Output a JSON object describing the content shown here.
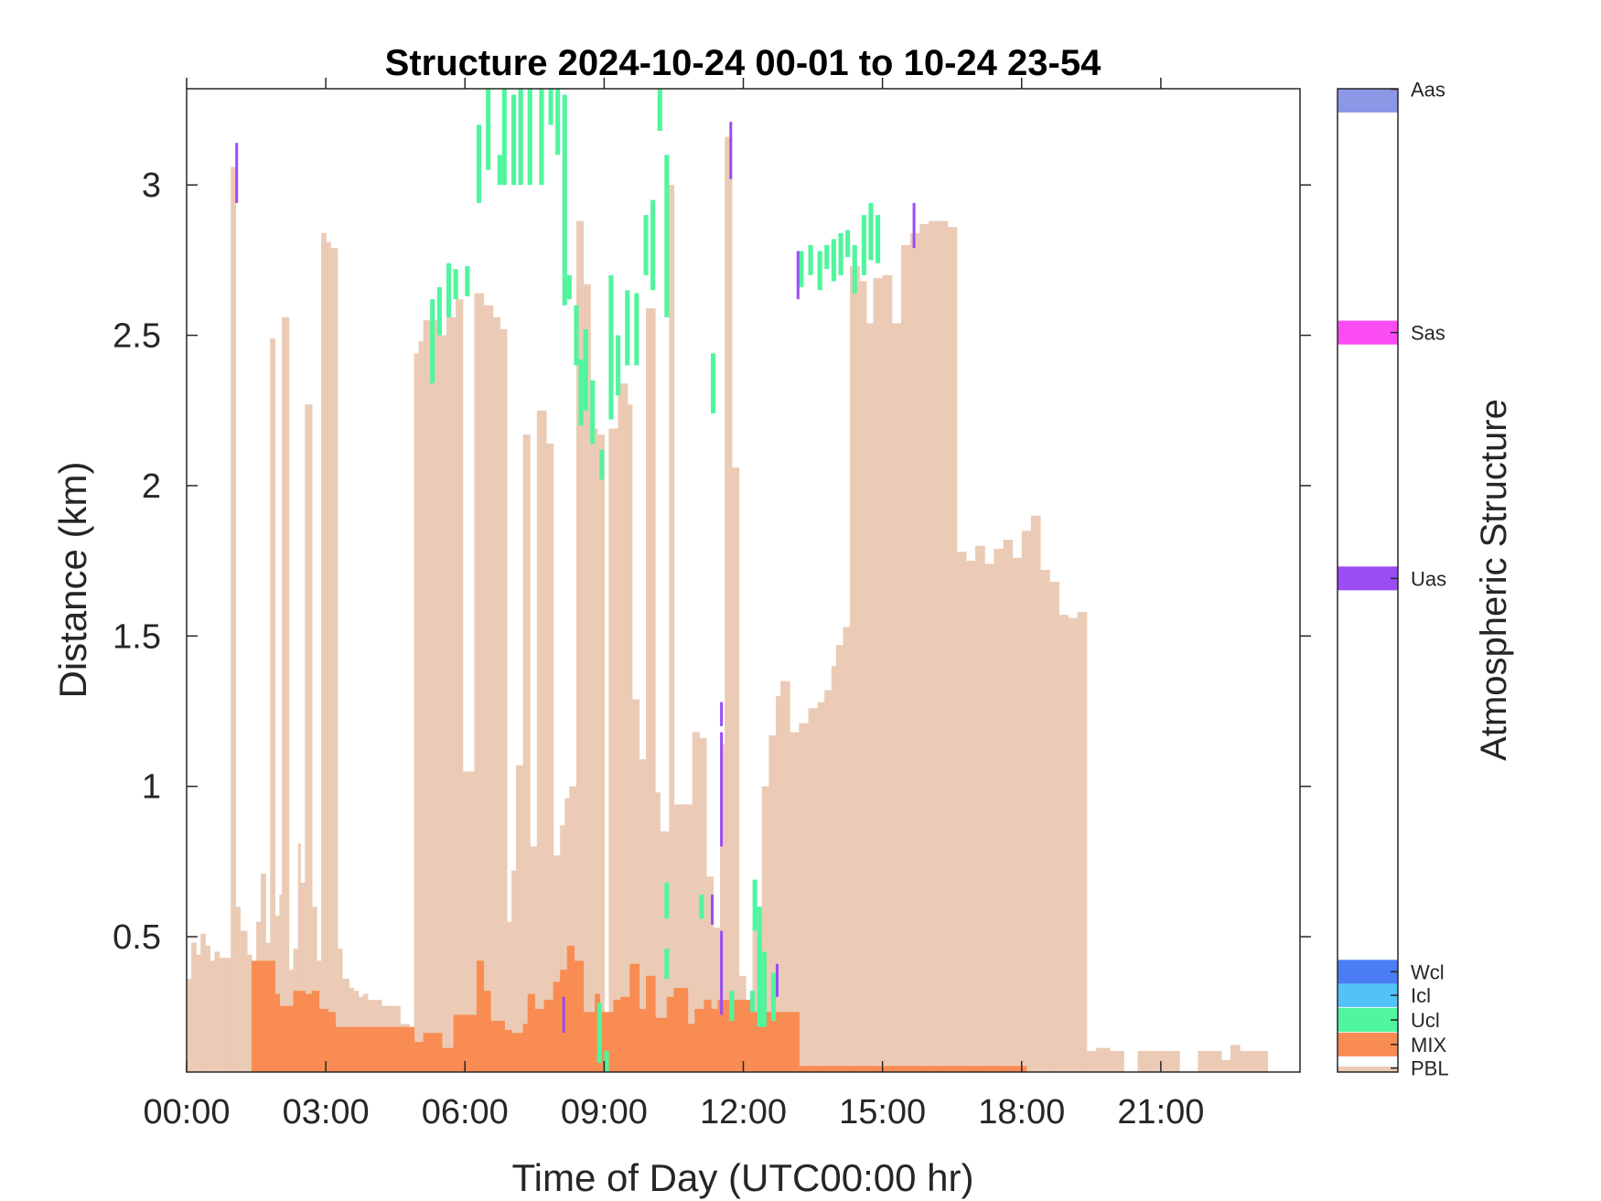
{
  "chart_data": {
    "type": "heatmap",
    "title": "Structure 2024-10-24 00-01 to 10-24 23-54",
    "xlabel": "Time of Day (UTC00:00 hr)",
    "ylabel": "Distance (km)",
    "colorbar_label": "Atmospheric Structure",
    "xlim": [
      0,
      24
    ],
    "ylim": [
      0.05,
      3.32
    ],
    "x_ticks": [
      0,
      3,
      6,
      9,
      12,
      15,
      18,
      21
    ],
    "x_tick_labels": [
      "00:00",
      "03:00",
      "06:00",
      "09:00",
      "12:00",
      "15:00",
      "18:00",
      "21:00"
    ],
    "y_ticks": [
      0.5,
      1,
      1.5,
      2,
      2.5,
      3
    ],
    "y_tick_labels": [
      "0.5",
      "1",
      "1.5",
      "2",
      "2.5",
      "3"
    ],
    "categories": [
      {
        "label": "PBL",
        "color": "#EBCBB5"
      },
      {
        "label": "MIX",
        "color": "#F88C52"
      },
      {
        "label": "Ucl",
        "color": "#50F59D"
      },
      {
        "label": "Icl",
        "color": "#52C3F8"
      },
      {
        "label": "Wcl",
        "color": "#4B7DF5"
      },
      {
        "label": "Uas",
        "color": "#9B4CF5"
      },
      {
        "label": "Sas",
        "color": "#FA4CF2"
      },
      {
        "label": "Aas",
        "color": "#8C98E6"
      }
    ],
    "series": [
      {
        "name": "PBL",
        "profile": [
          [
            0.0,
            0.36
          ],
          [
            0.1,
            0.48
          ],
          [
            0.2,
            0.44
          ],
          [
            0.3,
            0.51
          ],
          [
            0.4,
            0.47
          ],
          [
            0.5,
            0.42
          ],
          [
            0.6,
            0.45
          ],
          [
            0.7,
            0.43
          ],
          [
            0.8,
            0.43
          ],
          [
            0.95,
            3.06
          ],
          [
            1.05,
            0.6
          ],
          [
            1.15,
            0.52
          ],
          [
            1.3,
            0.44
          ],
          [
            1.4,
            0.41
          ],
          [
            1.5,
            0.55
          ],
          [
            1.6,
            0.71
          ],
          [
            1.7,
            0.48
          ],
          [
            1.8,
            2.49
          ],
          [
            1.9,
            0.57
          ],
          [
            2.0,
            0.64
          ],
          [
            2.05,
            2.56
          ],
          [
            2.2,
            0.39
          ],
          [
            2.3,
            0.46
          ],
          [
            2.4,
            0.81
          ],
          [
            2.45,
            0.68
          ],
          [
            2.55,
            2.27
          ],
          [
            2.7,
            0.6
          ],
          [
            2.8,
            0.42
          ],
          [
            2.9,
            2.84
          ],
          [
            3.0,
            2.81
          ],
          [
            3.1,
            2.79
          ],
          [
            3.25,
            0.46
          ],
          [
            3.35,
            0.36
          ],
          [
            3.5,
            0.33
          ],
          [
            3.6,
            0.32
          ],
          [
            3.7,
            0.3
          ],
          [
            3.8,
            0.31
          ],
          [
            3.9,
            0.29
          ],
          [
            4.0,
            0.29
          ],
          [
            4.2,
            0.27
          ],
          [
            4.4,
            0.27
          ],
          [
            4.6,
            0.21
          ],
          [
            4.8,
            0.16
          ],
          [
            4.9,
            2.44
          ],
          [
            5.0,
            2.48
          ],
          [
            5.1,
            2.55
          ],
          [
            5.2,
            2.55
          ],
          [
            5.4,
            2.5
          ],
          [
            5.6,
            2.56
          ],
          [
            5.8,
            2.62
          ],
          [
            5.95,
            1.05
          ],
          [
            6.2,
            2.64
          ],
          [
            6.4,
            2.6
          ],
          [
            6.6,
            2.56
          ],
          [
            6.75,
            2.52
          ],
          [
            6.9,
            0.55
          ],
          [
            7.0,
            0.72
          ],
          [
            7.1,
            1.07
          ],
          [
            7.25,
            2.17
          ],
          [
            7.4,
            0.8
          ],
          [
            7.55,
            2.25
          ],
          [
            7.75,
            2.14
          ],
          [
            7.9,
            0.77
          ],
          [
            8.05,
            0.87
          ],
          [
            8.15,
            0.96
          ],
          [
            8.25,
            1.0
          ],
          [
            8.4,
            2.88
          ],
          [
            8.55,
            2.67
          ],
          [
            8.7,
            2.19
          ],
          [
            8.85,
            2.17
          ],
          [
            9.0,
            0.15
          ],
          [
            9.1,
            2.19
          ],
          [
            9.3,
            2.34
          ],
          [
            9.5,
            2.27
          ],
          [
            9.6,
            1.29
          ],
          [
            9.75,
            1.09
          ],
          [
            9.9,
            2.59
          ],
          [
            10.1,
            0.98
          ],
          [
            10.2,
            0.85
          ],
          [
            10.4,
            3.0
          ],
          [
            10.5,
            0.94
          ],
          [
            10.7,
            0.94
          ],
          [
            10.9,
            1.18
          ],
          [
            11.05,
            1.16
          ],
          [
            11.2,
            0.7
          ],
          [
            11.35,
            0.53
          ],
          [
            11.5,
            1.14
          ],
          [
            11.6,
            3.16
          ],
          [
            11.75,
            2.06
          ],
          [
            11.9,
            0.37
          ],
          [
            12.05,
            0.2
          ],
          [
            12.2,
            0.52
          ],
          [
            12.3,
            0.49
          ],
          [
            12.4,
            1.0
          ],
          [
            12.55,
            1.17
          ],
          [
            12.7,
            1.3
          ],
          [
            12.8,
            1.35
          ],
          [
            13.0,
            1.18
          ],
          [
            13.2,
            1.21
          ],
          [
            13.4,
            1.26
          ],
          [
            13.6,
            1.28
          ],
          [
            13.75,
            1.32
          ],
          [
            13.9,
            1.4
          ],
          [
            14.0,
            1.47
          ],
          [
            14.15,
            1.53
          ],
          [
            14.3,
            2.73
          ],
          [
            14.5,
            2.68
          ],
          [
            14.65,
            2.54
          ],
          [
            14.8,
            2.69
          ],
          [
            15.0,
            2.7
          ],
          [
            15.2,
            2.54
          ],
          [
            15.4,
            2.8
          ],
          [
            15.6,
            2.84
          ],
          [
            15.8,
            2.87
          ],
          [
            16.0,
            2.88
          ],
          [
            16.2,
            2.88
          ],
          [
            16.4,
            2.86
          ],
          [
            16.6,
            1.78
          ],
          [
            16.8,
            1.75
          ],
          [
            17.0,
            1.8
          ],
          [
            17.2,
            1.74
          ],
          [
            17.4,
            1.79
          ],
          [
            17.6,
            1.82
          ],
          [
            17.8,
            1.76
          ],
          [
            18.0,
            1.85
          ],
          [
            18.2,
            1.9
          ],
          [
            18.4,
            1.72
          ],
          [
            18.6,
            1.68
          ],
          [
            18.8,
            1.57
          ],
          [
            19.0,
            1.56
          ],
          [
            19.2,
            1.58
          ],
          [
            19.4,
            0.12
          ],
          [
            19.6,
            0.13
          ],
          [
            19.9,
            0.12
          ],
          [
            20.2,
            0.0
          ],
          [
            20.5,
            0.12
          ],
          [
            20.8,
            0.12
          ],
          [
            21.1,
            0.12
          ],
          [
            21.4,
            0.0
          ],
          [
            21.8,
            0.12
          ],
          [
            22.0,
            0.12
          ],
          [
            22.3,
            0.09
          ],
          [
            22.5,
            0.14
          ],
          [
            22.7,
            0.12
          ],
          [
            23.0,
            0.12
          ],
          [
            23.3,
            0.05
          ],
          [
            23.6,
            0.0
          ]
        ]
      },
      {
        "name": "MIX",
        "profile": [
          [
            1.4,
            0.42
          ],
          [
            1.7,
            0.42
          ],
          [
            1.9,
            0.31
          ],
          [
            2.0,
            0.27
          ],
          [
            2.3,
            0.32
          ],
          [
            2.55,
            0.31
          ],
          [
            2.7,
            0.32
          ],
          [
            2.85,
            0.26
          ],
          [
            3.05,
            0.25
          ],
          [
            3.2,
            0.2
          ],
          [
            4.9,
            0.15
          ],
          [
            5.1,
            0.18
          ],
          [
            5.3,
            0.18
          ],
          [
            5.5,
            0.13
          ],
          [
            5.75,
            0.24
          ],
          [
            6.0,
            0.24
          ],
          [
            6.25,
            0.42
          ],
          [
            6.4,
            0.32
          ],
          [
            6.55,
            0.22
          ],
          [
            6.85,
            0.19
          ],
          [
            7.0,
            0.18
          ],
          [
            7.25,
            0.21
          ],
          [
            7.35,
            0.31
          ],
          [
            7.5,
            0.26
          ],
          [
            7.7,
            0.29
          ],
          [
            7.9,
            0.35
          ],
          [
            8.05,
            0.39
          ],
          [
            8.2,
            0.47
          ],
          [
            8.35,
            0.42
          ],
          [
            8.55,
            0.25
          ],
          [
            8.8,
            0.31
          ],
          [
            8.9,
            0.25
          ],
          [
            9.0,
            0.25
          ],
          [
            9.2,
            0.29
          ],
          [
            9.35,
            0.3
          ],
          [
            9.55,
            0.41
          ],
          [
            9.75,
            0.26
          ],
          [
            9.9,
            0.37
          ],
          [
            10.1,
            0.23
          ],
          [
            10.35,
            0.3
          ],
          [
            10.5,
            0.33
          ],
          [
            10.8,
            0.21
          ],
          [
            10.95,
            0.26
          ],
          [
            11.15,
            0.29
          ],
          [
            11.3,
            0.26
          ],
          [
            11.45,
            0.29
          ],
          [
            12.15,
            0.25
          ],
          [
            13.2,
            0.07
          ],
          [
            13.5,
            0.07
          ],
          [
            13.9,
            0.07
          ],
          [
            14.1,
            0.07
          ],
          [
            15.0,
            0.07
          ],
          [
            15.5,
            0.07
          ],
          [
            16.0,
            0.07
          ],
          [
            16.4,
            0.07
          ],
          [
            17.9,
            0.07
          ]
        ]
      }
    ],
    "events": {
      "Ucl": [
        [
          5.25,
          2.34,
          2.62
        ],
        [
          5.4,
          2.5,
          2.66
        ],
        [
          5.6,
          2.56,
          2.74
        ],
        [
          5.75,
          2.62,
          2.72
        ],
        [
          6.0,
          2.63,
          2.73
        ],
        [
          6.25,
          2.94,
          3.2
        ],
        [
          6.45,
          3.05,
          3.32
        ],
        [
          6.7,
          3.0,
          3.1
        ],
        [
          6.8,
          3.0,
          3.32
        ],
        [
          7.0,
          3.0,
          3.3
        ],
        [
          7.15,
          3.0,
          3.32
        ],
        [
          7.35,
          3.0,
          3.32
        ],
        [
          7.6,
          3.0,
          3.32
        ],
        [
          7.8,
          3.2,
          3.32
        ],
        [
          7.95,
          3.1,
          3.32
        ],
        [
          8.1,
          2.6,
          3.3
        ],
        [
          8.2,
          2.62,
          2.7
        ],
        [
          8.35,
          2.4,
          2.6
        ],
        [
          8.45,
          2.2,
          2.42
        ],
        [
          8.55,
          2.25,
          2.52
        ],
        [
          8.7,
          2.14,
          2.35
        ],
        [
          8.9,
          2.02,
          2.12
        ],
        [
          9.1,
          2.22,
          2.7
        ],
        [
          9.25,
          2.3,
          2.5
        ],
        [
          9.45,
          2.4,
          2.65
        ],
        [
          9.65,
          2.4,
          2.64
        ],
        [
          9.85,
          2.7,
          2.9
        ],
        [
          10.0,
          2.65,
          2.95
        ],
        [
          10.15,
          3.18,
          3.32
        ],
        [
          10.3,
          2.56,
          3.1
        ],
        [
          11.3,
          2.24,
          2.44
        ],
        [
          10.3,
          0.56,
          0.68
        ],
        [
          10.3,
          0.36,
          0.46
        ],
        [
          11.05,
          0.56,
          0.64
        ],
        [
          11.7,
          0.22,
          0.32
        ],
        [
          12.15,
          0.25,
          0.32
        ],
        [
          12.2,
          0.52,
          0.69
        ],
        [
          12.3,
          0.2,
          0.6
        ],
        [
          12.4,
          0.2,
          0.45
        ],
        [
          12.6,
          0.22,
          0.38
        ],
        [
          8.85,
          0.08,
          0.28
        ],
        [
          9.0,
          0.05,
          0.12
        ],
        [
          13.2,
          2.66,
          2.78
        ],
        [
          13.4,
          2.7,
          2.8
        ],
        [
          13.6,
          2.65,
          2.78
        ],
        [
          13.75,
          2.72,
          2.8
        ],
        [
          13.9,
          2.68,
          2.82
        ],
        [
          14.05,
          2.7,
          2.84
        ],
        [
          14.2,
          2.76,
          2.85
        ],
        [
          14.35,
          2.64,
          2.8
        ],
        [
          14.55,
          2.7,
          2.9
        ],
        [
          14.7,
          2.75,
          2.94
        ],
        [
          14.85,
          2.74,
          2.9
        ]
      ],
      "Uas": [
        [
          1.05,
          2.94,
          3.14
        ],
        [
          11.7,
          3.02,
          3.21
        ],
        [
          13.15,
          2.62,
          2.78
        ],
        [
          15.65,
          2.79,
          2.94
        ],
        [
          8.1,
          0.18,
          0.3
        ],
        [
          11.3,
          0.54,
          0.64
        ],
        [
          11.5,
          1.2,
          1.28
        ],
        [
          11.5,
          0.8,
          1.18
        ],
        [
          11.5,
          0.24,
          0.52
        ],
        [
          12.7,
          0.3,
          0.41
        ]
      ]
    }
  }
}
